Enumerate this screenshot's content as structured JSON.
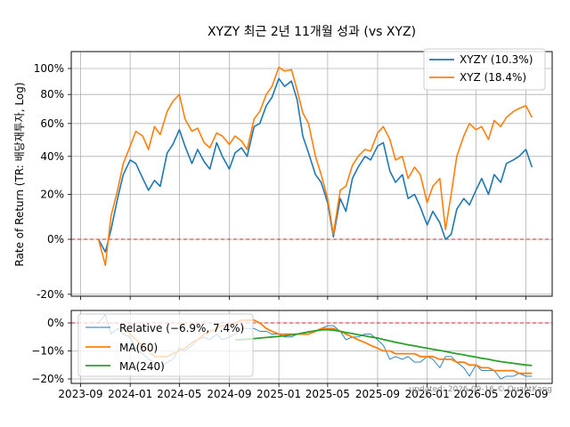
{
  "title": "XYZY 최근 2년 11개월 성과 (vs XYZ)",
  "watermark": "updated: 2026-09-16 © QuantKang",
  "chart_data": [
    {
      "type": "line",
      "title": "XYZY 최근 2년 11개월 성과 (vs XYZ)",
      "ylabel": "Rate of Return (TR: 배당재투자, Log)",
      "log_scale": true,
      "grid": true,
      "legend_position": "top-right",
      "reference_line": {
        "y": 0,
        "style": "dashed",
        "color": "#d62728"
      },
      "ylim": [
        -20,
        120
      ],
      "y_ticks": [
        "-20%",
        "0%",
        "20%",
        "40%",
        "60%",
        "80%",
        "100%"
      ],
      "y_tick_values": [
        -20,
        0,
        20,
        40,
        60,
        80,
        100
      ],
      "x_ticks": [
        "2023-09",
        "2024-01",
        "2024-05",
        "2024-09",
        "2025-01",
        "2025-05",
        "2025-09",
        "2026-01",
        "2026-05",
        "2026-09"
      ],
      "x": [
        "2023-10-15",
        "2023-11-01",
        "2023-11-15",
        "2023-12-01",
        "2023-12-15",
        "2024-01-01",
        "2024-01-15",
        "2024-02-01",
        "2024-02-15",
        "2024-03-01",
        "2024-03-15",
        "2024-04-01",
        "2024-04-15",
        "2024-05-01",
        "2024-05-15",
        "2024-06-01",
        "2024-06-15",
        "2024-07-01",
        "2024-07-15",
        "2024-08-01",
        "2024-08-15",
        "2024-09-01",
        "2024-09-15",
        "2024-10-01",
        "2024-10-15",
        "2024-11-01",
        "2024-11-15",
        "2024-12-01",
        "2024-12-15",
        "2025-01-01",
        "2025-01-15",
        "2025-02-01",
        "2025-02-15",
        "2025-03-01",
        "2025-03-15",
        "2025-04-01",
        "2025-04-15",
        "2025-05-01",
        "2025-05-15",
        "2025-06-01",
        "2025-06-15",
        "2025-07-01",
        "2025-07-15",
        "2025-08-01",
        "2025-08-15",
        "2025-09-01",
        "2025-09-15",
        "2025-10-01",
        "2025-10-15",
        "2025-11-01",
        "2025-11-15",
        "2025-12-01",
        "2025-12-15",
        "2026-01-01",
        "2026-01-15",
        "2026-02-01",
        "2026-02-15",
        "2026-03-01",
        "2026-03-15",
        "2026-04-01",
        "2026-04-15",
        "2026-05-01",
        "2026-05-15",
        "2026-06-01",
        "2026-06-15",
        "2026-07-01",
        "2026-07-15",
        "2026-08-01",
        "2026-08-15",
        "2026-09-01",
        "2026-09-16"
      ],
      "series": [
        {
          "name": "XYZY (10.3%)",
          "color": "#1f77b4",
          "values": [
            0,
            -5,
            4,
            18,
            30,
            38,
            36,
            28,
            22,
            27,
            24,
            42,
            47,
            56,
            46,
            36,
            44,
            37,
            33,
            48,
            40,
            33,
            42,
            45,
            40,
            58,
            60,
            72,
            78,
            92,
            86,
            90,
            76,
            52,
            42,
            30,
            26,
            16,
            1,
            18,
            12,
            28,
            34,
            40,
            38,
            46,
            48,
            32,
            26,
            30,
            18,
            20,
            14,
            6,
            12,
            7,
            0,
            2,
            13,
            18,
            15,
            22,
            28,
            20,
            30,
            26,
            36,
            38,
            40,
            44,
            34
          ]
        },
        {
          "name": "XYZ (18.4%)",
          "color": "#ff7f0e",
          "values": [
            0,
            -10,
            10,
            22,
            36,
            46,
            55,
            52,
            44,
            58,
            53,
            68,
            75,
            80,
            63,
            55,
            57,
            48,
            45,
            54,
            52,
            47,
            52,
            49,
            44,
            63,
            68,
            80,
            86,
            101,
            98,
            99,
            83,
            67,
            60,
            40,
            30,
            18,
            2,
            22,
            24,
            35,
            40,
            44,
            43,
            54,
            58,
            50,
            38,
            40,
            28,
            34,
            30,
            16,
            24,
            28,
            4,
            20,
            40,
            52,
            60,
            56,
            58,
            50,
            62,
            58,
            64,
            68,
            70,
            72,
            64
          ]
        }
      ]
    },
    {
      "type": "line",
      "ylim": [
        -22,
        5
      ],
      "grid": true,
      "legend_position": "top-left",
      "reference_line": {
        "y": 0,
        "style": "dashed",
        "color": "#d62728"
      },
      "y_ticks": [
        "0%",
        "−10%",
        "−20%"
      ],
      "y_tick_values": [
        0,
        -10,
        -20
      ],
      "x_ticks": [
        "2023-09",
        "2024-01",
        "2024-05",
        "2024-09",
        "2025-01",
        "2025-05",
        "2025-09",
        "2026-01",
        "2026-05",
        "2026-09"
      ],
      "series": [
        {
          "name": "Relative (−6.9%, 7.4%)",
          "color": "#1f77b4",
          "values": [
            0,
            3,
            -4,
            -2,
            -4,
            -5,
            -9,
            -11,
            -13,
            -14,
            -16,
            -14,
            -13,
            -9,
            -10,
            -8,
            -6,
            -5,
            -6,
            -4,
            -6,
            -5,
            -4,
            -2,
            -2,
            -2,
            -3,
            -3,
            -4,
            -4,
            -5,
            -5,
            -4,
            -4,
            -3,
            -3,
            -2,
            -1,
            -1,
            -3,
            -6,
            -5,
            -5,
            -4,
            -4,
            -6,
            -8,
            -13,
            -12,
            -13,
            -12,
            -14,
            -14,
            -12,
            -13,
            -16,
            -12,
            -12,
            -14,
            -16,
            -19,
            -15,
            -17,
            -17,
            -17,
            -20,
            -19,
            -19,
            -18,
            -19,
            -19
          ]
        },
        {
          "name": "MA(60)",
          "color": "#ff7f0e",
          "values": [
            null,
            null,
            null,
            null,
            -2,
            -4,
            -6,
            -8,
            -10,
            -12,
            -12,
            -12,
            -11,
            -10,
            -9,
            -7,
            -6,
            -4,
            -3,
            -2,
            -1,
            -1,
            0,
            1,
            1,
            1,
            0,
            -2,
            -3,
            -4,
            -4,
            -4,
            -4,
            -4,
            -4,
            -3,
            -2,
            -2,
            -2,
            -3,
            -4,
            -5,
            -6,
            -7,
            -8,
            -9,
            -10,
            -10,
            -11,
            -11,
            -11,
            -11,
            -12,
            -12,
            -12,
            -13,
            -13,
            -13,
            -14,
            -14,
            -15,
            -15,
            -16,
            -16,
            -17,
            -17,
            -17,
            -17,
            -18,
            -18,
            -18
          ]
        },
        {
          "name": "MA(240)",
          "color": "#2ca02c",
          "values": [
            null,
            null,
            null,
            null,
            null,
            null,
            null,
            null,
            null,
            null,
            null,
            null,
            null,
            null,
            null,
            null,
            null,
            null,
            null,
            null,
            null,
            null,
            -6,
            -6,
            -5.8,
            -5.6,
            -5.4,
            -5.2,
            -5,
            -4.8,
            -4.6,
            -4.3,
            -4,
            -3.6,
            -3.2,
            -2.8,
            -2.5,
            -2.4,
            -2.6,
            -3,
            -3.4,
            -3.8,
            -4.2,
            -4.6,
            -5,
            -5.4,
            -5.9,
            -6.4,
            -6.9,
            -7.4,
            -7.8,
            -8.2,
            -8.6,
            -9,
            -9.4,
            -9.8,
            -10.2,
            -10.6,
            -11,
            -11.4,
            -11.8,
            -12.2,
            -12.6,
            -13,
            -13.4,
            -13.8,
            -14.1,
            -14.4,
            -14.7,
            -15,
            -15.2
          ]
        }
      ]
    }
  ]
}
